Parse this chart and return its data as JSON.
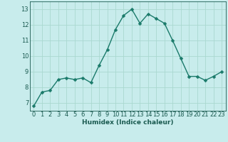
{
  "x": [
    0,
    1,
    2,
    3,
    4,
    5,
    6,
    7,
    8,
    9,
    10,
    11,
    12,
    13,
    14,
    15,
    16,
    17,
    18,
    19,
    20,
    21,
    22,
    23
  ],
  "y": [
    6.8,
    7.7,
    7.8,
    8.5,
    8.6,
    8.5,
    8.6,
    8.3,
    9.4,
    10.4,
    11.7,
    12.6,
    13.0,
    12.1,
    12.7,
    12.4,
    12.1,
    11.0,
    9.85,
    8.7,
    8.7,
    8.45,
    8.7,
    9.0
  ],
  "line_color": "#1a7a6a",
  "marker_color": "#1a7a6a",
  "bg_color": "#c8ecec",
  "grid_color": "#aad8d0",
  "xlabel": "Humidex (Indice chaleur)",
  "xlabel_color": "#1a5a50",
  "ylim": [
    6.5,
    13.5
  ],
  "xlim": [
    -0.5,
    23.5
  ],
  "yticks": [
    7,
    8,
    9,
    10,
    11,
    12,
    13
  ],
  "xticks": [
    0,
    1,
    2,
    3,
    4,
    5,
    6,
    7,
    8,
    9,
    10,
    11,
    12,
    13,
    14,
    15,
    16,
    17,
    18,
    19,
    20,
    21,
    22,
    23
  ],
  "tick_color": "#1a5a50",
  "font_size": 6.0,
  "line_width": 1.0,
  "marker_size": 2.5
}
